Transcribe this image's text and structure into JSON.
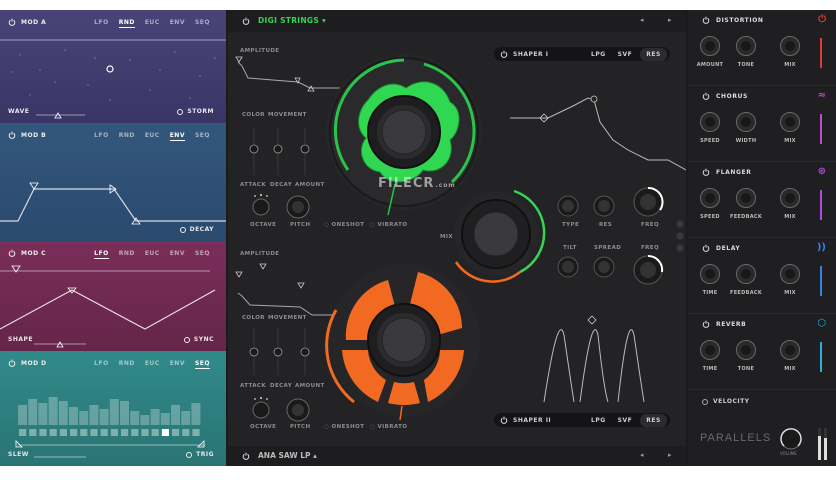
{
  "mods": [
    {
      "title": "MOD A",
      "tabs": [
        "LFO",
        "RND",
        "EUC",
        "ENV",
        "SEQ"
      ],
      "active": "RND",
      "foot_left": "WAVE",
      "foot_right": "STORM",
      "bg": "#3f3a6a"
    },
    {
      "title": "MOD B",
      "tabs": [
        "LFO",
        "RND",
        "EUC",
        "ENV",
        "SEQ"
      ],
      "active": "ENV",
      "foot_left": "",
      "foot_right": "DECAY",
      "bg": "#2e4f73"
    },
    {
      "title": "MOD C",
      "tabs": [
        "LFO",
        "RND",
        "EUC",
        "ENV",
        "SEQ"
      ],
      "active": "LFO",
      "foot_left": "SHAPE",
      "foot_right": "SYNC",
      "bg": "#6e2b52"
    },
    {
      "title": "MOD D",
      "tabs": [
        "LFO",
        "RND",
        "EUC",
        "ENV",
        "SEQ"
      ],
      "active": "SEQ",
      "foot_left": "SLEW",
      "foot_right": "TRIG",
      "bg": "#2e7e80"
    }
  ],
  "center": {
    "preset_top": "DIGI STRINGS",
    "preset_bottom": "ANA SAW LP",
    "amplitude_1": "AMPLITUDE",
    "amplitude_2": "AMPLITUDE",
    "color": "COLOR",
    "movement": "MOVEMENT",
    "attack": "ATTACK",
    "decay": "DECAY",
    "amount": "AMOUNT",
    "octave": "OCTAVE",
    "pitch": "PITCH",
    "oneshot": "ONESHOT",
    "vibrato": "VIBRATO",
    "mix": "MIX",
    "shaper_1": "SHAPER I",
    "shaper_2": "SHAPER II",
    "lpg": "LPG",
    "svf": "SVF",
    "res": "RES",
    "type": "TYPE",
    "res_knob": "RES",
    "freq": "FREQ",
    "tilt": "TILT",
    "spread": "SPREAD",
    "freq2": "FREQ",
    "watermark": "FILECR",
    "watermark_sub": ".com"
  },
  "effects": [
    {
      "name": "DISTORTION",
      "labels": [
        "AMOUNT",
        "TONE",
        "MIX"
      ],
      "color": "#e23a3a",
      "icon": "distortion-icon"
    },
    {
      "name": "CHORUS",
      "labels": [
        "SPEED",
        "WIDTH",
        "MIX"
      ],
      "color": "#c04ad0",
      "icon": "chorus-icon"
    },
    {
      "name": "FLANGER",
      "labels": [
        "SPEED",
        "FEEDBACK",
        "MIX"
      ],
      "color": "#b04ae0",
      "icon": "flanger-icon"
    },
    {
      "name": "DELAY",
      "labels": [
        "TIME",
        "FEEDBACK",
        "MIX"
      ],
      "color": "#3a7ee8",
      "icon": "delay-icon"
    },
    {
      "name": "REVERB",
      "labels": [
        "TIME",
        "TONE",
        "MIX"
      ],
      "color": "#2ab0d8",
      "icon": "reverb-icon"
    }
  ],
  "velocity": "VELOCITY",
  "brand": "PARALLELS",
  "volume": "VOLUME"
}
